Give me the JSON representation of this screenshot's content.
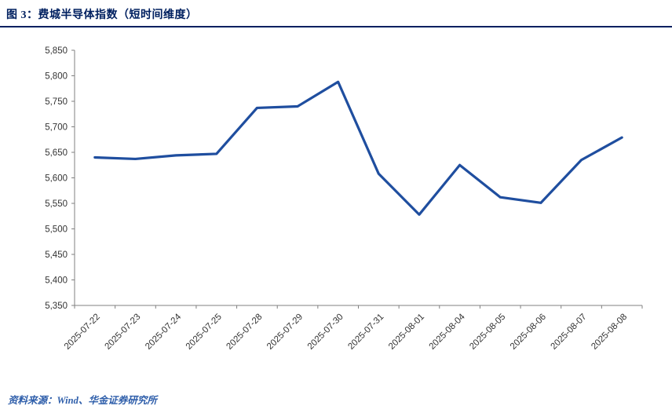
{
  "header": {
    "title": "图 3：费城半导体指数（短时间维度）"
  },
  "footer": {
    "source": "资料来源：Wind、华金证券研究所"
  },
  "colors": {
    "title": "#002060",
    "divider": "#002060",
    "line": "#1F4E9F",
    "source": "#2E5EAA",
    "axis": "#808080",
    "tick_label": "#333333",
    "background": "#FFFFFF"
  },
  "chart_data": {
    "type": "line",
    "title": "图 3：费城半导体指数（短时间维度）",
    "categories": [
      "2025-07-22",
      "2025-07-23",
      "2025-07-24",
      "2025-07-25",
      "2025-07-28",
      "2025-07-29",
      "2025-07-30",
      "2025-07-31",
      "2025-08-01",
      "2025-08-04",
      "2025-08-05",
      "2025-08-06",
      "2025-08-07",
      "2025-08-08"
    ],
    "values": [
      5640,
      5637,
      5644,
      5647,
      5737,
      5740,
      5788,
      5608,
      5528,
      5625,
      5562,
      5551,
      5635,
      5679
    ],
    "xlabel": "",
    "ylabel": "",
    "ylim": [
      5350,
      5850
    ],
    "ytick_step": 50,
    "grid": false,
    "legend": "none"
  }
}
